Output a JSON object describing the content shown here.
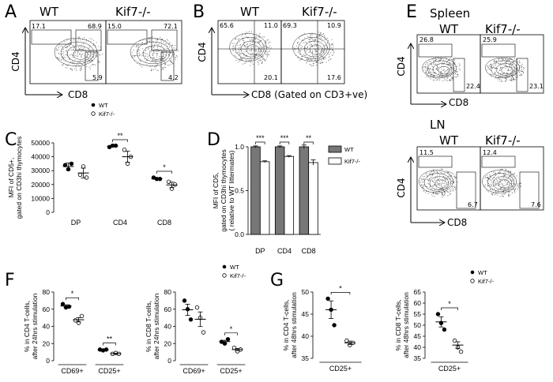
{
  "panels": {
    "A": {
      "label": "A",
      "titles": [
        "WT",
        "Kif7-/-"
      ],
      "y_axis": "CD4",
      "x_axis": "CD8",
      "quadrants": [
        [
          "17.1",
          "68.9",
          "5.9"
        ],
        [
          "15.0",
          "72.1",
          "4.2"
        ]
      ]
    },
    "B": {
      "label": "B",
      "titles": [
        "WT",
        "Kif7-/-"
      ],
      "y_axis": "CD4",
      "x_axis": "CD8 (Gated on CD3+ve)",
      "quadrants": [
        [
          "65.6",
          "11.0",
          "20.1"
        ],
        [
          "69.3",
          "10.9",
          "17.6"
        ]
      ]
    },
    "E": {
      "label": "E",
      "spleen_title": "Spleen",
      "ln_title": "LN",
      "titles": [
        "WT",
        "Kif7-/-"
      ],
      "y_axis": "CD4",
      "x_axis": "CD8",
      "spleen": [
        [
          "26.8",
          "22.4"
        ],
        [
          "25.9",
          "23.1"
        ]
      ],
      "ln": [
        [
          "11.5",
          "6.7"
        ],
        [
          "12.4",
          "7.6"
        ]
      ]
    },
    "C": {
      "label": "C"
    },
    "D": {
      "label": "D"
    },
    "F": {
      "label": "F"
    },
    "G": {
      "label": "G"
    }
  },
  "legend": {
    "wt": "WT",
    "ko": "Kif7-/-"
  },
  "chart_data": [
    {
      "id": "C",
      "type": "scatter",
      "ylabel": "MFI of CD5+,\ngated on CD3hi thymocytes",
      "categories": [
        "DP",
        "CD4",
        "CD8"
      ],
      "ylim": [
        0,
        50000
      ],
      "yticks": [
        "0",
        "10000",
        "20000",
        "30000",
        "40000",
        "50000"
      ],
      "series": [
        {
          "name": "WT",
          "points": [
            [
              34000,
              31000,
              35000
            ],
            [
              47000,
              48000,
              48000
            ],
            [
              25000,
              24000,
              24000
            ]
          ],
          "mean": [
            33000,
            47600,
            24300
          ],
          "sem": [
            2500,
            400,
            400
          ]
        },
        {
          "name": "Kif7-/-",
          "points": [
            [
              27000,
              33000,
              25000
            ],
            [
              45000,
              35000,
              40000
            ],
            [
              22000,
              17000,
              20000
            ]
          ],
          "mean": [
            28300,
            40000,
            19700
          ],
          "sem": [
            3500,
            4000,
            2000
          ]
        }
      ],
      "significance": [
        {
          "groups": "CD4",
          "label": "**"
        },
        {
          "groups": "CD8",
          "label": "*"
        }
      ]
    },
    {
      "id": "D",
      "type": "bar",
      "ylabel": "MFI of CD5,\ngated on CD3hi thymocytes\n( relative to WT littermates)",
      "categories": [
        "DP",
        "CD4",
        "CD8"
      ],
      "ylim": [
        0,
        1.0
      ],
      "yticks": [
        "0.0",
        "0.5",
        "1.0"
      ],
      "series": [
        {
          "name": "WT",
          "values": [
            1.0,
            1.0,
            1.0
          ],
          "err": [
            0.01,
            0.01,
            0.02
          ]
        },
        {
          "name": "Kif7-/-",
          "values": [
            0.83,
            0.89,
            0.82
          ],
          "err": [
            0.01,
            0.01,
            0.03
          ]
        }
      ],
      "significance": [
        "***",
        "***",
        "**"
      ]
    },
    {
      "id": "F1",
      "type": "scatter",
      "ylabel": "% in CD4 T-cells,\nafter 24hrs stimulation",
      "categories": [
        "CD69+",
        "CD25+"
      ],
      "ylim": [
        0,
        80
      ],
      "yticks": [
        "0",
        "20",
        "40",
        "60",
        "80"
      ],
      "series": [
        {
          "name": "WT",
          "points": [
            [
              66,
              62,
              63
            ],
            [
              13,
              12,
              13
            ]
          ],
          "mean": [
            63.7,
            12.7
          ],
          "sem": [
            1.5,
            0.5
          ]
        },
        {
          "name": "Kif7-/-",
          "points": [
            [
              47,
              44,
              52
            ],
            [
              8,
              9,
              8
            ]
          ],
          "mean": [
            47.7,
            8.3
          ],
          "sem": [
            2.5,
            0.4
          ]
        }
      ],
      "significance": [
        {
          "groups": "CD69+",
          "label": "*"
        },
        {
          "groups": "CD25+",
          "label": "**"
        }
      ]
    },
    {
      "id": "F2",
      "type": "scatter",
      "ylabel": "% in CD8 T-cells,\nafter 24hrs stimulation",
      "categories": [
        "CD69+",
        "CD25+"
      ],
      "ylim": [
        0,
        80
      ],
      "yticks": [
        "0",
        "20",
        "40",
        "60",
        "80"
      ],
      "series": [
        {
          "name": "WT",
          "points": [
            [
              70,
              60,
              48
            ],
            [
              22,
              20,
              25
            ]
          ],
          "mean": [
            59.3,
            22.3
          ],
          "sem": [
            6.5,
            1.5
          ]
        },
        {
          "name": "Kif7-/-",
          "points": [
            [
              62,
              50,
              33
            ],
            [
              15,
              11,
              13
            ]
          ],
          "mean": [
            48.3,
            13
          ],
          "sem": [
            8.5,
            1.2
          ]
        }
      ],
      "significance": [
        {
          "groups": "CD25+",
          "label": "*"
        }
      ]
    },
    {
      "id": "G1",
      "type": "scatter",
      "ylabel": "% in CD4 T-cells,\nafter 48hrs stimulation",
      "categories": [
        "CD25+"
      ],
      "ylim": [
        35,
        50
      ],
      "yticks": [
        "35",
        "40",
        "45",
        "50"
      ],
      "series": [
        {
          "name": "WT",
          "points": [
            [
              48.5,
              46,
              42.5
            ]
          ],
          "mean": [
            46
          ],
          "sem": [
            2
          ]
        },
        {
          "name": "Kif7-/-",
          "points": [
            [
              39,
              38,
              38.5
            ]
          ],
          "mean": [
            38.5
          ],
          "sem": [
            0.4
          ]
        }
      ],
      "significance": [
        {
          "groups": "CD25+",
          "label": "*"
        }
      ]
    },
    {
      "id": "G2",
      "type": "scatter",
      "ylabel": "% in CD8 T-cells,\nafter 48hrs stimulation",
      "categories": [
        "CD25+"
      ],
      "ylim": [
        35,
        65
      ],
      "yticks": [
        "35",
        "40",
        "45",
        "50",
        "55",
        "60",
        "65"
      ],
      "series": [
        {
          "name": "WT",
          "points": [
            [
              55,
              51,
              48
            ]
          ],
          "mean": [
            51.5
          ],
          "sem": [
            2.3
          ]
        },
        {
          "name": "Kif7-/-",
          "points": [
            [
              43,
              40,
              38
            ]
          ],
          "mean": [
            41
          ],
          "sem": [
            1.5
          ]
        }
      ],
      "significance": [
        {
          "groups": "CD25+",
          "label": "*"
        }
      ]
    }
  ]
}
